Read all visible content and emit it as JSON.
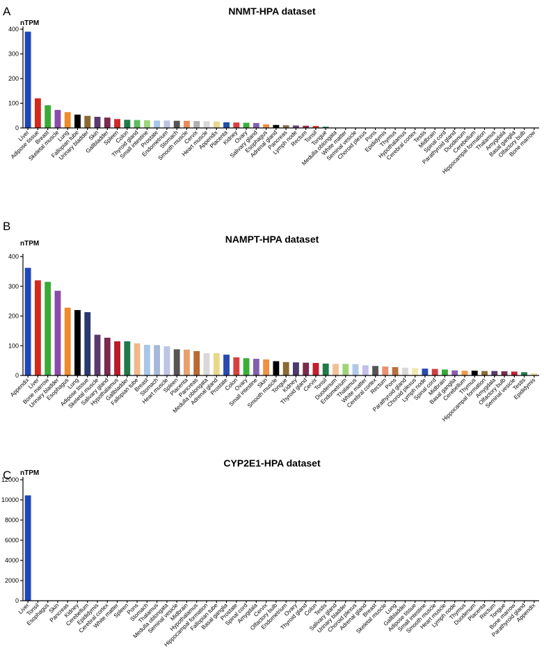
{
  "chart_data": [
    {
      "panel": "A",
      "type": "bar",
      "title": "NNMT-HPA dataset",
      "ylabel": "nTPM",
      "ylim": [
        0,
        400
      ],
      "yticks": [
        0,
        100,
        200,
        300,
        400
      ],
      "grid": false,
      "categories": [
        "Liver",
        "Adipose tissue",
        "Breast",
        "Skeletal muscle",
        "Lung",
        "Fallopian tube",
        "Urinary bladder",
        "Skin",
        "Gallbladder",
        "Spleen",
        "Colon",
        "Thyroid gland",
        "Small intestine",
        "Prostate",
        "Endometrium",
        "Stomach",
        "Smooth muscle",
        "Cervix",
        "Heart muscle",
        "Appendix",
        "Placenta",
        "Kidney",
        "Ovary",
        "Salivary gland",
        "Esophagus",
        "Adrenal gland",
        "Pancreas",
        "Lymph node",
        "Rectum",
        "Tonsil",
        "Tongue",
        "Medulla oblongata",
        "White matter",
        "Seminal vesicle",
        "Choroid plexus",
        "Pons",
        "Epididymis",
        "Thymus",
        "Hypothalamus",
        "Cerebral cortex",
        "Testis",
        "Midbrain",
        "Spinal cord",
        "Parathyroid gland",
        "Duodenum",
        "Cerebellum",
        "Hippocampal formation",
        "Thalamus",
        "Amygdala",
        "Basal ganglia",
        "Olfactory bulb",
        "Bone marrow"
      ],
      "values": [
        390,
        120,
        92,
        73,
        64,
        54,
        49,
        45,
        42,
        36,
        33,
        32,
        31,
        30,
        30,
        29,
        29,
        28,
        27,
        26,
        23,
        22,
        21,
        20,
        15,
        12,
        11,
        10,
        9,
        8,
        5,
        0,
        0,
        0,
        0,
        0,
        0,
        0,
        0,
        0,
        0,
        0,
        0,
        0,
        0,
        0,
        0,
        0,
        0,
        0,
        0,
        0
      ],
      "colors": [
        "#2047b8",
        "#d42a1c",
        "#3aaa35",
        "#8a4ca8",
        "#f08a2a",
        "#000000",
        "#8b6a32",
        "#5a3a6e",
        "#7a2a4e",
        "#cc2a2a",
        "#1f7a4a",
        "#5cbd5c",
        "#9dd57a",
        "#a9c6e8",
        "#bcc4e8",
        "#555555",
        "#e88a5a",
        "#b0b0b0",
        "#d8d8d8",
        "#e8d88a",
        "#2050a8",
        "#d84040",
        "#38b038",
        "#8060b0",
        "#f09040",
        "#000000",
        "#8b7050",
        "#6a4a7a",
        "#a02a4a",
        "#d04030",
        "#1f8050",
        "#60c060",
        "#a0d080",
        "#b0c8e8",
        "#c0c0e8",
        "#606060",
        "#e89070",
        "#b8b8b8",
        "#d0d0d0",
        "#e0d090",
        "#2a4aa0",
        "#d04848",
        "#40a840",
        "#8868b0",
        "#f09848",
        "#303030",
        "#907050",
        "#704a80",
        "#a83050",
        "#c84838",
        "#288050",
        "#58b858"
      ]
    },
    {
      "panel": "B",
      "type": "bar",
      "title": "NAMPT-HPA dataset",
      "ylabel": "nTPM",
      "ylim": [
        0,
        400
      ],
      "yticks": [
        0,
        100,
        200,
        300,
        400
      ],
      "grid": false,
      "categories": [
        "Appendix",
        "Liver",
        "Bone marrow",
        "Urinary bladder",
        "Esophagus",
        "Lung",
        "Adipose tissue",
        "Skeletal muscle",
        "Salivary gland",
        "Hypothalamus",
        "Gallbladder",
        "Fallopian tube",
        "Breast",
        "Stomach",
        "Heart muscle",
        "Spleen",
        "Placenta",
        "Pancreas",
        "Medulla oblongata",
        "Adrenal gland",
        "Prostate",
        "Colon",
        "Ovary",
        "Small intestine",
        "Skin",
        "Smooth muscle",
        "Tongue",
        "Kidney",
        "Thyroid gland",
        "Cervix",
        "Tonsil",
        "Duodenum",
        "Endometrium",
        "Thalamus",
        "White matter",
        "Cerebral cortex",
        "Rectum",
        "Pons",
        "Parathyroid gland",
        "Choroid plexus",
        "Lymph node",
        "Spinal cord",
        "Midbrain",
        "Basal ganglia",
        "Cerebellum",
        "Thymus",
        "Hippocampal formation",
        "Amygdala",
        "Olfactory bulb",
        "Seminal vesicle",
        "Testis",
        "Epididymis"
      ],
      "values": [
        362,
        320,
        315,
        285,
        228,
        220,
        213,
        137,
        127,
        115,
        115,
        108,
        103,
        102,
        98,
        88,
        87,
        82,
        75,
        75,
        70,
        61,
        58,
        56,
        54,
        48,
        45,
        44,
        43,
        42,
        40,
        39,
        39,
        38,
        34,
        32,
        30,
        28,
        26,
        25,
        23,
        22,
        20,
        17,
        16,
        16,
        15,
        15,
        14,
        13,
        11,
        7
      ],
      "colors": [
        "#2047b8",
        "#d42a1c",
        "#3aaa35",
        "#8a4ca8",
        "#f08a2a",
        "#000000",
        "#2a3a6e",
        "#5a3a6e",
        "#7a2a4e",
        "#b81c2a",
        "#1f7a4a",
        "#f0b88a",
        "#a9c6e8",
        "#a6b8d8",
        "#bcc4e8",
        "#555555",
        "#e8a070",
        "#b86a32",
        "#d8d8d8",
        "#e8d88a",
        "#2a4ab0",
        "#d84040",
        "#38b038",
        "#8060b0",
        "#f09040",
        "#000000",
        "#8b6a32",
        "#4a3a6e",
        "#7a2a4e",
        "#c02030",
        "#1f7a4a",
        "#f0c098",
        "#9dd57a",
        "#b0c8e8",
        "#c0c0e8",
        "#555555",
        "#e89070",
        "#b87040",
        "#d8d8d8",
        "#f0e8b0",
        "#2a4ab0",
        "#d04040",
        "#38a838",
        "#8860b0",
        "#f09848",
        "#000000",
        "#8b6a32",
        "#5a3a6e",
        "#7a2a4e",
        "#c02030",
        "#1f7a4a",
        "#e8d8a0"
      ]
    },
    {
      "panel": "C",
      "type": "bar",
      "title": "CYP2E1-HPA dataset",
      "ylabel": "nTPM",
      "ylim": [
        0,
        12000
      ],
      "yticks": [
        0,
        2000,
        4000,
        6000,
        8000,
        10000,
        12000
      ],
      "grid": false,
      "categories": [
        "Liver",
        "Tonsil",
        "Esophagus",
        "Skin",
        "Pancreas",
        "Kidney",
        "Cerebellum",
        "Epididymis",
        "Cerebral cortex",
        "White matter",
        "Spleen",
        "Pons",
        "Stomach",
        "Thalamus",
        "Medulla oblongata",
        "Seminal vesicle",
        "Midbrain",
        "Hypothalamus",
        "Hippocampal formation",
        "Fallopian tube",
        "Basal ganglia",
        "Prostate",
        "Spinal cord",
        "Amygdala",
        "Cervix",
        "Olfactory bulb",
        "Endometrium",
        "Ovary",
        "Thyroid gland",
        "Colon",
        "Testis",
        "Salivary gland",
        "Urinary bladder",
        "Choroid plexus",
        "Adrenal gland",
        "Breast",
        "Skeletal muscle",
        "Lung",
        "Gallbladder",
        "Adipose tissue",
        "Small intestine",
        "Smooth muscle",
        "Heart muscle",
        "Lymph node",
        "Thymus",
        "Duodenum",
        "Placenta",
        "Rectum",
        "Tongue",
        "Bone marrow",
        "Parathyroid gland",
        "Appendix"
      ],
      "values": [
        10450,
        0,
        0,
        0,
        0,
        0,
        0,
        0,
        0,
        0,
        0,
        0,
        0,
        0,
        0,
        0,
        0,
        0,
        0,
        0,
        0,
        0,
        0,
        0,
        0,
        0,
        0,
        0,
        0,
        0,
        0,
        0,
        0,
        0,
        0,
        0,
        0,
        0,
        0,
        0,
        0,
        0,
        0,
        0,
        0,
        0,
        0,
        0,
        0,
        0,
        0,
        0
      ],
      "colors": [
        "#2047b8"
      ]
    }
  ]
}
